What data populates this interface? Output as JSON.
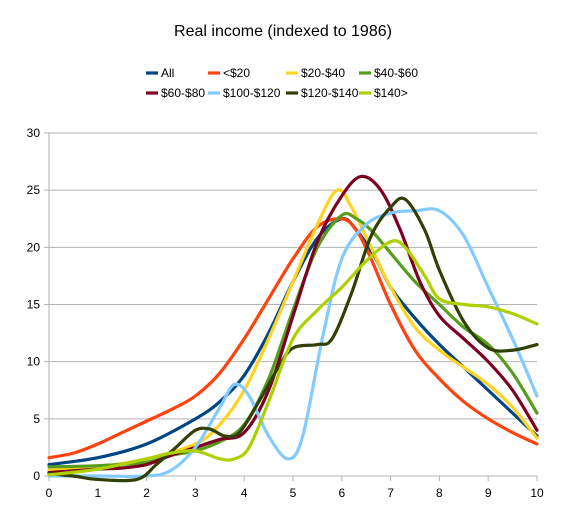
{
  "chart_data": {
    "type": "line",
    "title": "Real income (indexed to 1986)",
    "xlabel": "",
    "ylabel": "",
    "xlim": [
      0,
      10
    ],
    "ylim": [
      0,
      30
    ],
    "x_ticks": [
      "0",
      "1",
      "2",
      "3",
      "4",
      "5",
      "6",
      "7",
      "8",
      "9",
      "10"
    ],
    "y_ticks": [
      "0",
      "5",
      "10",
      "15",
      "20",
      "25",
      "30"
    ],
    "grid": "horizontal",
    "legend_position": "top",
    "series": [
      {
        "name": "All",
        "color": "#004586",
        "points": [
          [
            0,
            1.0
          ],
          [
            1,
            1.6
          ],
          [
            2,
            2.8
          ],
          [
            3,
            5.0
          ],
          [
            3.5,
            6.5
          ],
          [
            4,
            8.8
          ],
          [
            4.5,
            12.5
          ],
          [
            5,
            17.0
          ],
          [
            5.5,
            20.8
          ],
          [
            6,
            22.5
          ],
          [
            6.3,
            21.5
          ],
          [
            6.7,
            19.0
          ],
          [
            7,
            16.5
          ],
          [
            7.5,
            13.8
          ],
          [
            8,
            11.5
          ],
          [
            8.5,
            9.5
          ],
          [
            9,
            7.5
          ],
          [
            9.5,
            5.5
          ],
          [
            10,
            3.5
          ]
        ]
      },
      {
        "name": "<$20",
        "color": "#ff420e",
        "points": [
          [
            0,
            1.6
          ],
          [
            0.5,
            2.0
          ],
          [
            1,
            2.8
          ],
          [
            1.5,
            3.8
          ],
          [
            2,
            4.8
          ],
          [
            2.5,
            5.8
          ],
          [
            3,
            7.0
          ],
          [
            3.5,
            9.0
          ],
          [
            4,
            12.0
          ],
          [
            4.5,
            15.5
          ],
          [
            5,
            19.0
          ],
          [
            5.5,
            21.8
          ],
          [
            6,
            22.5
          ],
          [
            6.3,
            21.5
          ],
          [
            6.6,
            19.0
          ],
          [
            7,
            15.0
          ],
          [
            7.5,
            11.0
          ],
          [
            8,
            8.5
          ],
          [
            8.5,
            6.5
          ],
          [
            9,
            5.0
          ],
          [
            9.5,
            3.8
          ],
          [
            10,
            2.8
          ]
        ]
      },
      {
        "name": "$20-$40",
        "color": "#ffd320",
        "points": [
          [
            0,
            0.5
          ],
          [
            1,
            0.8
          ],
          [
            2,
            1.5
          ],
          [
            3,
            2.8
          ],
          [
            3.5,
            4.5
          ],
          [
            4,
            7.5
          ],
          [
            4.5,
            12.0
          ],
          [
            5,
            17.0
          ],
          [
            5.5,
            22.0
          ],
          [
            5.9,
            25.0
          ],
          [
            6.2,
            23.5
          ],
          [
            6.6,
            20.0
          ],
          [
            7,
            16.5
          ],
          [
            7.5,
            13.0
          ],
          [
            8,
            11.0
          ],
          [
            8.5,
            9.5
          ],
          [
            9,
            8.0
          ],
          [
            9.5,
            6.0
          ],
          [
            10,
            3.3
          ]
        ]
      },
      {
        "name": "$40-$60",
        "color": "#579d1c",
        "points": [
          [
            0,
            0.8
          ],
          [
            1,
            0.9
          ],
          [
            2,
            1.2
          ],
          [
            2.5,
            1.8
          ],
          [
            3,
            2.2
          ],
          [
            3.5,
            3.0
          ],
          [
            4,
            4.5
          ],
          [
            4.5,
            8.5
          ],
          [
            5,
            14.5
          ],
          [
            5.5,
            20.0
          ],
          [
            6,
            22.8
          ],
          [
            6.3,
            22.5
          ],
          [
            6.6,
            21.5
          ],
          [
            7,
            19.5
          ],
          [
            7.5,
            17.0
          ],
          [
            8,
            15.0
          ],
          [
            8.5,
            13.0
          ],
          [
            9,
            11.5
          ],
          [
            9.5,
            9.0
          ],
          [
            10,
            5.5
          ]
        ]
      },
      {
        "name": "$60-$80",
        "color": "#7e0021",
        "points": [
          [
            0,
            0.3
          ],
          [
            1,
            0.6
          ],
          [
            1.5,
            0.7
          ],
          [
            2,
            1.0
          ],
          [
            2.5,
            1.8
          ],
          [
            3,
            2.5
          ],
          [
            3.5,
            3.2
          ],
          [
            4,
            3.8
          ],
          [
            4.5,
            7.5
          ],
          [
            5,
            14.0
          ],
          [
            5.5,
            20.5
          ],
          [
            6,
            24.5
          ],
          [
            6.4,
            26.2
          ],
          [
            6.8,
            25.0
          ],
          [
            7.2,
            21.5
          ],
          [
            7.6,
            17.0
          ],
          [
            8,
            14.0
          ],
          [
            8.5,
            12.0
          ],
          [
            9,
            10.0
          ],
          [
            9.5,
            7.5
          ],
          [
            10,
            4.0
          ]
        ]
      },
      {
        "name": "$100-$120",
        "color": "#83caff",
        "points": [
          [
            0,
            0.0
          ],
          [
            1,
            0.0
          ],
          [
            2,
            0.0
          ],
          [
            2.5,
            0.5
          ],
          [
            3,
            2.5
          ],
          [
            3.5,
            6.0
          ],
          [
            3.8,
            8.0
          ],
          [
            4.1,
            7.0
          ],
          [
            4.5,
            3.5
          ],
          [
            4.9,
            1.5
          ],
          [
            5.2,
            3.5
          ],
          [
            5.6,
            12.0
          ],
          [
            6,
            19.0
          ],
          [
            6.5,
            22.0
          ],
          [
            7,
            23.0
          ],
          [
            7.5,
            23.2
          ],
          [
            8,
            23.2
          ],
          [
            8.5,
            21.0
          ],
          [
            9,
            16.5
          ],
          [
            9.5,
            12.0
          ],
          [
            10,
            7.0
          ]
        ]
      },
      {
        "name": "$120-$140",
        "color": "#314004",
        "points": [
          [
            0,
            0.2
          ],
          [
            0.5,
            0.0
          ],
          [
            1,
            -0.3
          ],
          [
            1.8,
            -0.3
          ],
          [
            2.2,
            1.0
          ],
          [
            2.6,
            2.5
          ],
          [
            3.0,
            4.0
          ],
          [
            3.3,
            4.1
          ],
          [
            3.6,
            3.5
          ],
          [
            3.9,
            3.8
          ],
          [
            4.3,
            6.5
          ],
          [
            4.7,
            9.5
          ],
          [
            5,
            11.2
          ],
          [
            5.5,
            11.5
          ],
          [
            5.8,
            12.0
          ],
          [
            6.2,
            16.0
          ],
          [
            6.6,
            21.0
          ],
          [
            7,
            23.5
          ],
          [
            7.3,
            24.2
          ],
          [
            7.7,
            21.5
          ],
          [
            8,
            18.0
          ],
          [
            8.5,
            13.5
          ],
          [
            9,
            11.2
          ],
          [
            9.5,
            11.0
          ],
          [
            10,
            11.5
          ]
        ]
      },
      {
        "name": "$140>",
        "color": "#aecf00",
        "points": [
          [
            0,
            0.1
          ],
          [
            1,
            0.6
          ],
          [
            2,
            1.5
          ],
          [
            2.5,
            2.0
          ],
          [
            3,
            2.2
          ],
          [
            3.5,
            1.5
          ],
          [
            3.8,
            1.5
          ],
          [
            4.1,
            2.5
          ],
          [
            4.5,
            6.5
          ],
          [
            5,
            12.0
          ],
          [
            5.5,
            14.5
          ],
          [
            6,
            16.5
          ],
          [
            6.5,
            18.8
          ],
          [
            7,
            20.5
          ],
          [
            7.3,
            20.0
          ],
          [
            7.7,
            17.5
          ],
          [
            8,
            15.5
          ],
          [
            8.5,
            15.0
          ],
          [
            9,
            14.8
          ],
          [
            9.5,
            14.2
          ],
          [
            10,
            13.3
          ]
        ]
      }
    ]
  }
}
